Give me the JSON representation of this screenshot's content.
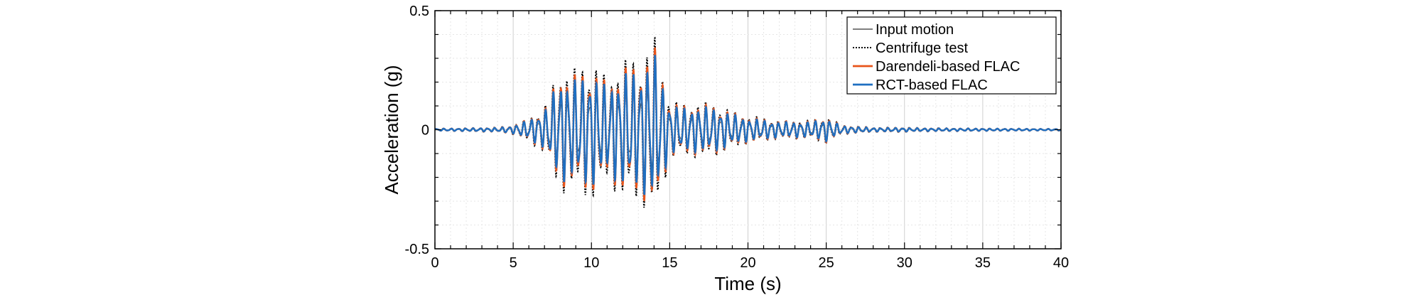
{
  "chart_data": {
    "type": "line",
    "title": "",
    "xlabel": "Time (s)",
    "ylabel": "Acceleration (g)",
    "xlim": [
      0,
      40
    ],
    "ylim": [
      -0.5,
      0.5
    ],
    "xticks": [
      0,
      5,
      10,
      15,
      20,
      25,
      30,
      35,
      40
    ],
    "xtick_labels": [
      "0",
      "5",
      "10",
      "15",
      "20",
      "25",
      "30",
      "35",
      "40"
    ],
    "yticks": [
      -0.5,
      0,
      0.5
    ],
    "ytick_labels": [
      "-0.5",
      "0",
      "0.5"
    ],
    "grid": true,
    "legend_position": "top-right",
    "series": [
      {
        "name": "Input motion",
        "color": "#555555",
        "style": "solid",
        "scale": 0.55
      },
      {
        "name": "Centrifuge test",
        "color": "#000000",
        "style": "dotted",
        "scale": 1.0
      },
      {
        "name": "Darendeli-based FLAC",
        "color": "#e8541a",
        "style": "solid",
        "scale": 0.9
      },
      {
        "name": "RCT-based FLAC",
        "color": "#1f6fc1",
        "style": "solid",
        "scale": 0.82
      }
    ],
    "envelope": {
      "t": [
        0,
        4,
        5,
        6,
        7,
        8,
        9,
        10,
        11,
        12,
        13,
        14,
        15,
        16,
        17,
        18,
        19,
        20,
        21,
        22,
        23,
        24,
        25,
        26,
        27,
        28,
        29,
        30,
        31,
        35,
        40
      ],
      "amp": [
        0.005,
        0.01,
        0.02,
        0.05,
        0.1,
        0.27,
        0.26,
        0.3,
        0.22,
        0.3,
        0.3,
        0.4,
        0.13,
        0.11,
        0.12,
        0.11,
        0.08,
        0.06,
        0.05,
        0.04,
        0.04,
        0.04,
        0.06,
        0.02,
        0.015,
        0.01,
        0.01,
        0.01,
        0.008,
        0.006,
        0.004
      ]
    }
  }
}
